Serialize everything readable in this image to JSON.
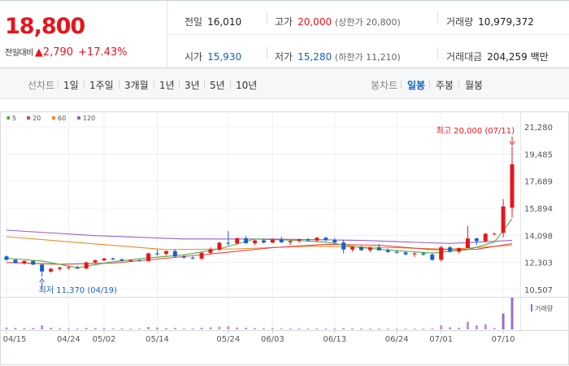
{
  "quote": {
    "price": "18,800",
    "change_label": "전일대비",
    "change": "▲2,790",
    "change_pct": "+17.43%",
    "fields": {
      "prev_close": {
        "label": "전일",
        "value": "16,010"
      },
      "high": {
        "label": "고가",
        "value": "20,000",
        "sub": "(상한가 20,800)"
      },
      "volume": {
        "label": "거래량",
        "value": "10,979,372"
      },
      "open": {
        "label": "시가",
        "value": "15,930"
      },
      "low": {
        "label": "저가",
        "value": "15,280",
        "sub": "(하한가 11,210)"
      },
      "amount": {
        "label": "거래대금",
        "value": "204,259",
        "unit": "백만"
      }
    },
    "colors": {
      "up": "#e8141c",
      "down": "#1560c9"
    }
  },
  "tabs": {
    "line_label": "선차트",
    "periods": [
      "1일",
      "1주일",
      "3개월",
      "1년",
      "3년",
      "5년",
      "10년"
    ],
    "candle_label": "봉차트",
    "candles": [
      "일봉",
      "주봉",
      "월봉"
    ],
    "active_candle": "일봉"
  },
  "chart_data": {
    "type": "candlestick",
    "legend": [
      {
        "name": "5",
        "color": "#4caf3c"
      },
      {
        "name": "20",
        "color": "#e8403c"
      },
      {
        "name": "60",
        "color": "#f0882a"
      },
      {
        "name": "120",
        "color": "#9a60c8"
      }
    ],
    "y_ticks": [
      "21,280",
      "19,485",
      "17,689",
      "15,894",
      "14,098",
      "12,303",
      "10,507"
    ],
    "ylim": [
      10507,
      21280
    ],
    "x_ticks": [
      {
        "label": "04/15",
        "i": 0
      },
      {
        "label": "04/24",
        "i": 7
      },
      {
        "label": "05/02",
        "i": 11
      },
      {
        "label": "05/14",
        "i": 17
      },
      {
        "label": "05/24",
        "i": 25
      },
      {
        "label": "06/03",
        "i": 30
      },
      {
        "label": "06/13",
        "i": 37
      },
      {
        "label": "06/24",
        "i": 44
      },
      {
        "label": "07/01",
        "i": 49
      },
      {
        "label": "07/10",
        "i": 56
      }
    ],
    "max_annotation": "최고 20,000 (07/11)",
    "min_annotation": "최저 11,370 (04/19)",
    "volume_legend": "거래량",
    "candles": [
      [
        12700,
        12760,
        12420,
        12480,
        55
      ],
      [
        12480,
        12500,
        12230,
        12260,
        48
      ],
      [
        12260,
        12430,
        12160,
        12400,
        40
      ],
      [
        12400,
        12430,
        12120,
        12160,
        42
      ],
      [
        12160,
        12200,
        11370,
        11700,
        120
      ],
      [
        11700,
        11940,
        11640,
        11880,
        50
      ],
      [
        11880,
        12020,
        11760,
        11960,
        35
      ],
      [
        11960,
        12060,
        11840,
        11980,
        32
      ],
      [
        11980,
        12080,
        11860,
        11900,
        30
      ],
      [
        11900,
        12360,
        11860,
        12300,
        45
      ],
      [
        12300,
        12500,
        12240,
        12440,
        40
      ],
      [
        12440,
        12610,
        12380,
        12560,
        38
      ],
      [
        12560,
        12640,
        12450,
        12500,
        30
      ],
      [
        12500,
        12580,
        12380,
        12420,
        28
      ],
      [
        12420,
        12510,
        12350,
        12440,
        25
      ],
      [
        12440,
        12520,
        12360,
        12400,
        24
      ],
      [
        12400,
        12950,
        12360,
        12900,
        70
      ],
      [
        12900,
        13160,
        12750,
        12880,
        55
      ],
      [
        12880,
        13080,
        12750,
        13050,
        40
      ],
      [
        13050,
        13180,
        12620,
        12700,
        45
      ],
      [
        12700,
        12800,
        12560,
        12620,
        30
      ],
      [
        12620,
        12700,
        12520,
        12560,
        28
      ],
      [
        12560,
        13000,
        12480,
        12940,
        50
      ],
      [
        12940,
        13300,
        12820,
        13150,
        60
      ],
      [
        13150,
        13680,
        13050,
        13600,
        80
      ],
      [
        13600,
        14380,
        13420,
        13570,
        90
      ],
      [
        13570,
        13950,
        13480,
        13900,
        55
      ],
      [
        13900,
        14050,
        13530,
        13580,
        50
      ],
      [
        13580,
        13810,
        13450,
        13760,
        40
      ],
      [
        13760,
        13890,
        13560,
        13620,
        36
      ],
      [
        13620,
        13880,
        13580,
        13820,
        32
      ],
      [
        13820,
        14000,
        13580,
        13640,
        30
      ],
      [
        13640,
        13780,
        13460,
        13720,
        28
      ],
      [
        13720,
        13880,
        13620,
        13840,
        26
      ],
      [
        13840,
        13920,
        13680,
        13760,
        24
      ],
      [
        13760,
        13990,
        13700,
        13940,
        30
      ],
      [
        13940,
        14000,
        13720,
        13780,
        28
      ],
      [
        13780,
        13920,
        13560,
        13620,
        26
      ],
      [
        13620,
        13820,
        12900,
        13160,
        40
      ],
      [
        13160,
        13400,
        13020,
        13320,
        30
      ],
      [
        13320,
        13400,
        13060,
        13120,
        28
      ],
      [
        13120,
        13340,
        12980,
        13280,
        26
      ],
      [
        13280,
        13520,
        13160,
        13100,
        25
      ],
      [
        13100,
        13230,
        12920,
        13000,
        24
      ],
      [
        13000,
        13100,
        12880,
        12960,
        22
      ],
      [
        12960,
        13060,
        12760,
        12840,
        22
      ],
      [
        12840,
        12960,
        12680,
        12900,
        20
      ],
      [
        12900,
        13000,
        12750,
        12820,
        20
      ],
      [
        12820,
        12940,
        12400,
        12480,
        30
      ],
      [
        12480,
        13420,
        12360,
        13300,
        120
      ],
      [
        13300,
        13400,
        12950,
        13020,
        60
      ],
      [
        13020,
        13290,
        12900,
        13250,
        50
      ],
      [
        13250,
        14730,
        13250,
        13890,
        220
      ],
      [
        13890,
        13950,
        13470,
        13720,
        120
      ],
      [
        13720,
        14260,
        13620,
        14200,
        150
      ],
      [
        14200,
        14280,
        14140,
        14200,
        40
      ],
      [
        14260,
        16500,
        13960,
        16010,
        460
      ],
      [
        15930,
        20000,
        15280,
        18800,
        920
      ]
    ],
    "ma5": [
      [
        0,
        12580
      ],
      [
        4,
        12400
      ],
      [
        8,
        11950
      ],
      [
        12,
        12350
      ],
      [
        16,
        12600
      ],
      [
        20,
        12800
      ],
      [
        24,
        13200
      ],
      [
        28,
        13850
      ],
      [
        32,
        13780
      ],
      [
        36,
        13650
      ],
      [
        40,
        13280
      ],
      [
        44,
        13080
      ],
      [
        48,
        12920
      ],
      [
        52,
        13150
      ],
      [
        55,
        13650
      ],
      [
        57,
        15200
      ]
    ],
    "ma20": [
      [
        0,
        12300
      ],
      [
        6,
        12180
      ],
      [
        12,
        12260
      ],
      [
        18,
        12580
      ],
      [
        24,
        12920
      ],
      [
        30,
        13280
      ],
      [
        36,
        13500
      ],
      [
        42,
        13440
      ],
      [
        48,
        13150
      ],
      [
        53,
        13180
      ],
      [
        57,
        13550
      ]
    ],
    "ma60": [
      [
        0,
        14010
      ],
      [
        10,
        13530
      ],
      [
        18,
        13150
      ],
      [
        26,
        13200
      ],
      [
        34,
        13380
      ],
      [
        42,
        13310
      ],
      [
        50,
        13180
      ],
      [
        57,
        13440
      ]
    ],
    "ma120": [
      [
        0,
        14440
      ],
      [
        10,
        14080
      ],
      [
        20,
        13860
      ],
      [
        30,
        13850
      ],
      [
        40,
        13760
      ],
      [
        50,
        13560
      ],
      [
        57,
        13760
      ]
    ]
  }
}
